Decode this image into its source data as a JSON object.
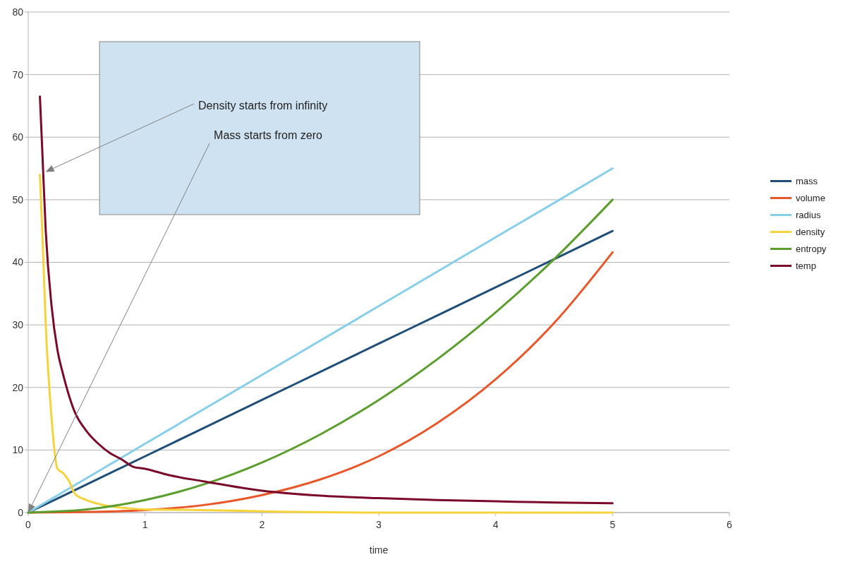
{
  "chart_data": {
    "type": "line",
    "xlabel": "time",
    "xlim": [
      0,
      6
    ],
    "ylim": [
      0,
      80
    ],
    "xticks": [
      0,
      1,
      2,
      3,
      4,
      5,
      6
    ],
    "yticks": [
      0,
      10,
      20,
      30,
      40,
      50,
      60,
      70,
      80
    ],
    "grid": "y",
    "legend": "right",
    "marker": "none",
    "line_style": "solid",
    "annotations": [
      "Density starts from infinity",
      "Mass starts from zero"
    ],
    "series": [
      {
        "name": "mass",
        "color": "#1f4e79",
        "x": [
          0,
          0.5,
          1,
          1.5,
          2,
          2.5,
          3,
          3.5,
          4,
          4.5,
          5
        ],
        "values": [
          0,
          4.5,
          9,
          13.5,
          18,
          22.5,
          27,
          31.5,
          36,
          40.5,
          45
        ]
      },
      {
        "name": "volume",
        "color": "#e8572a",
        "x": [
          0,
          0.5,
          1,
          1.5,
          2,
          2.5,
          3,
          3.5,
          4,
          4.5,
          5
        ],
        "values": [
          0,
          0.1,
          0.4,
          1.2,
          2.8,
          5.3,
          9,
          14.3,
          21.3,
          30.3,
          41.6
        ]
      },
      {
        "name": "radius",
        "color": "#87ceeb",
        "x": [
          0,
          1,
          2,
          3,
          4,
          5
        ],
        "values": [
          0,
          11,
          22,
          33,
          44,
          55
        ]
      },
      {
        "name": "density",
        "color": "#f5d33a",
        "x": [
          0.1,
          0.12,
          0.15,
          0.2,
          0.25,
          0.3,
          0.35,
          0.4,
          0.5,
          0.6,
          0.7,
          0.85,
          1,
          1.5,
          2,
          2.25,
          3,
          4,
          5
        ],
        "values": [
          54,
          45,
          30,
          15,
          7,
          6.3,
          5,
          3,
          2,
          1.4,
          1,
          0.7,
          0.5,
          0.4,
          0.2,
          0.1,
          0,
          0,
          0
        ]
      },
      {
        "name": "entropy",
        "color": "#5b9e2d",
        "x": [
          0,
          0.5,
          1,
          1.5,
          2,
          2.5,
          3,
          3.5,
          4,
          4.5,
          5
        ],
        "values": [
          0,
          0.5,
          2,
          4.5,
          8,
          12.5,
          18,
          24.5,
          32,
          40.5,
          50
        ]
      },
      {
        "name": "temp",
        "color": "#7b0a2a",
        "x": [
          0.1,
          0.12,
          0.15,
          0.2,
          0.25,
          0.3,
          0.4,
          0.5,
          0.6,
          0.7,
          0.8,
          0.9,
          1,
          1.2,
          1.5,
          2,
          2.5,
          3,
          3.5,
          4,
          4.5,
          5
        ],
        "values": [
          66.5,
          58,
          45,
          33,
          26,
          22,
          16,
          13,
          11,
          9.5,
          8.5,
          7.3,
          7,
          6,
          5,
          3.5,
          2.7,
          2.3,
          2,
          1.8,
          1.6,
          1.5
        ]
      }
    ]
  }
}
